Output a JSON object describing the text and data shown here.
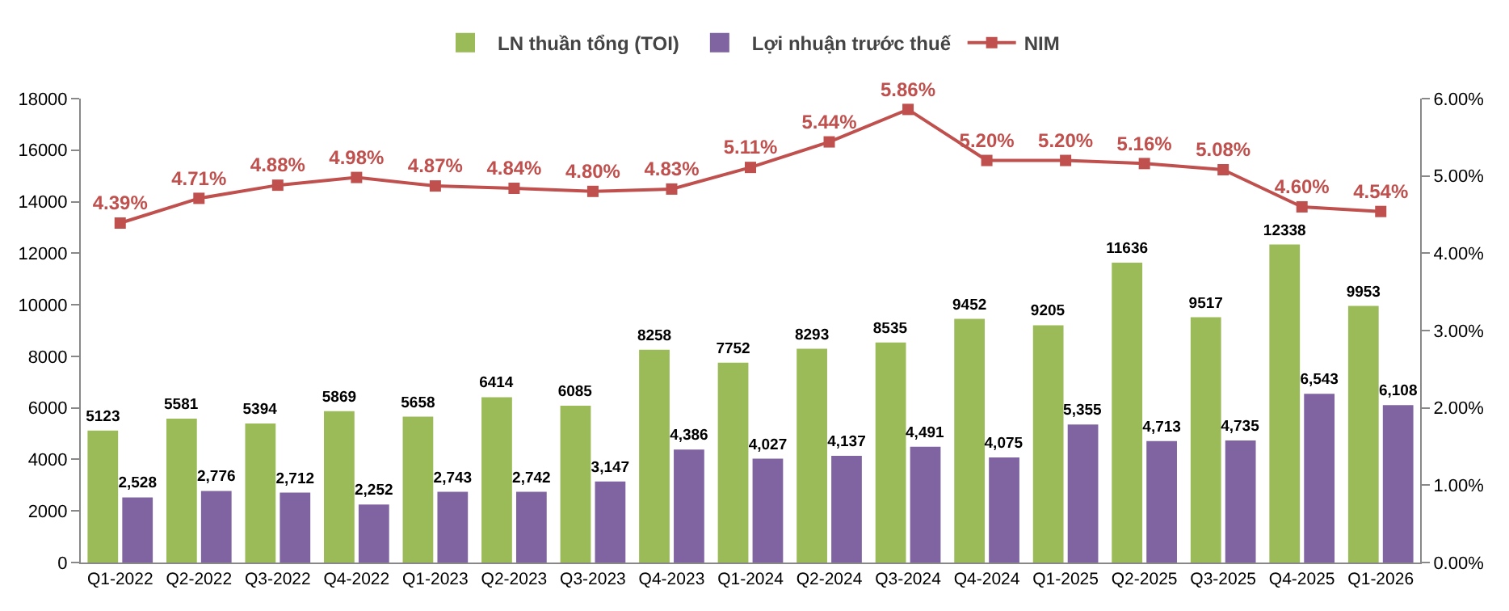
{
  "chart_data": {
    "type": "bar",
    "categories": [
      "Q1-2022",
      "Q2-2022",
      "Q3-2022",
      "Q4-2022",
      "Q1-2023",
      "Q2-2023",
      "Q3-2023",
      "Q4-2023",
      "Q1-2024",
      "Q2-2024",
      "Q3-2024",
      "Q4-2024",
      "Q1-2025",
      "Q2-2025",
      "Q3-2025",
      "Q4-2025",
      "Q1-2026"
    ],
    "series": [
      {
        "name": "LN thuần tổng (TOI)",
        "color": "#9bbb59",
        "values": [
          5123,
          5581,
          5394,
          5869,
          5658,
          6414,
          6085,
          8258,
          7752,
          8293,
          8535,
          9452,
          9205,
          11636,
          9517,
          12338,
          9953
        ],
        "value_labels": [
          "5123",
          "5581",
          "5394",
          "5869",
          "5658",
          "6414",
          "6085",
          "8258",
          "7752",
          "8293",
          "8535",
          "9452",
          "9205",
          "11636",
          "9517",
          "12338",
          "9953"
        ]
      },
      {
        "name": "Lợi nhuận trước thuế",
        "color": "#8064a2",
        "values": [
          2528,
          2776,
          2712,
          2252,
          2743,
          2742,
          3147,
          4386,
          4027,
          4137,
          4491,
          4075,
          5355,
          4713,
          4735,
          6543,
          6108
        ],
        "value_labels": [
          "2,528",
          "2,776",
          "2,712",
          "2,252",
          "2,743",
          "2,742",
          "3,147",
          "4,386",
          "4,027",
          "4,137",
          "4,491",
          "4,075",
          "5,355",
          "4,713",
          "4,735",
          "6,543",
          "6,108"
        ]
      },
      {
        "name": "NIM",
        "type": "line",
        "axis": "y2",
        "color": "#c0504d",
        "marker": "square",
        "values": [
          4.39,
          4.71,
          4.88,
          4.98,
          4.87,
          4.84,
          4.8,
          4.83,
          5.11,
          5.44,
          5.86,
          5.2,
          5.2,
          5.16,
          5.08,
          4.6,
          4.54
        ],
        "value_labels": [
          "4.39%",
          "4.71%",
          "4.88%",
          "4.98%",
          "4.87%",
          "4.84%",
          "4.80%",
          "4.83%",
          "5.11%",
          "5.44%",
          "5.86%",
          "5.20%",
          "5.20%",
          "5.16%",
          "5.08%",
          "4.60%",
          "4.54%"
        ]
      }
    ],
    "ylim": [
      0,
      18000
    ],
    "yticks": [
      0,
      2000,
      4000,
      6000,
      8000,
      10000,
      12000,
      14000,
      16000,
      18000
    ],
    "y2lim": [
      0,
      6
    ],
    "y2ticks": [
      {
        "value": 0,
        "label": "0.00%"
      },
      {
        "value": 1,
        "label": "1.00%"
      },
      {
        "value": 2,
        "label": "2.00%"
      },
      {
        "value": 3,
        "label": "3.00%"
      },
      {
        "value": 4,
        "label": "4.00%"
      },
      {
        "value": 5,
        "label": "5.00%"
      },
      {
        "value": 6,
        "label": "6.00%"
      }
    ],
    "grid": false,
    "legend": "top"
  }
}
